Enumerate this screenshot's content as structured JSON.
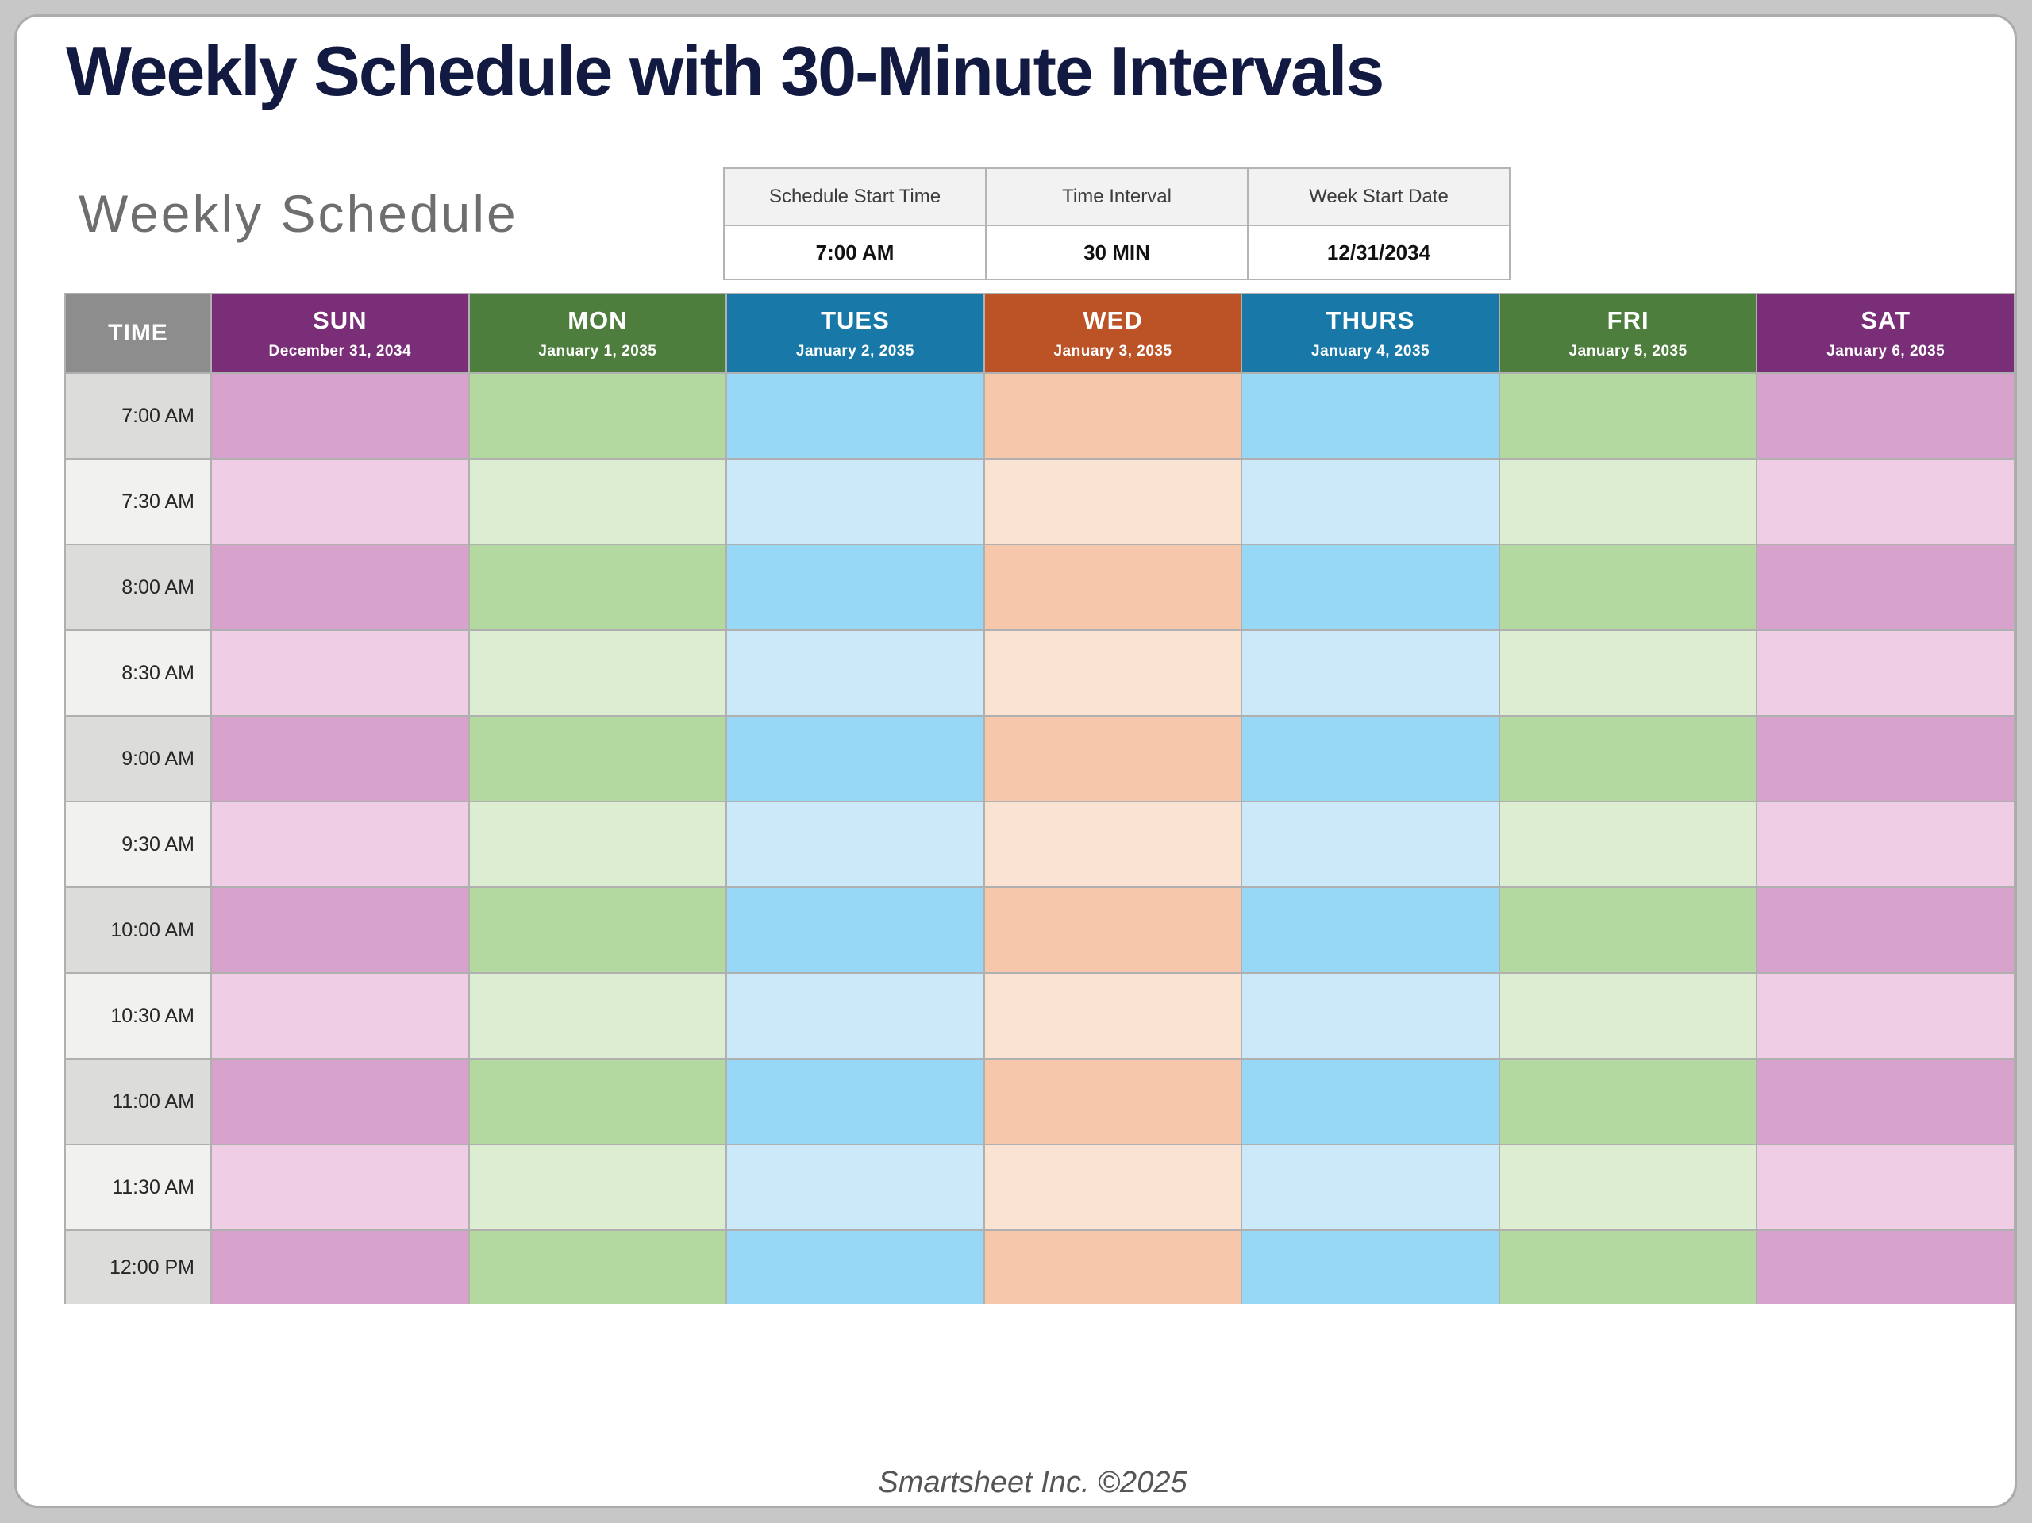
{
  "page": {
    "title": "Weekly Schedule with 30-Minute Intervals",
    "subtitle": "Weekly Schedule",
    "footer": "Smartsheet Inc. ©2025"
  },
  "settings": {
    "columns": [
      {
        "label": "Schedule Start Time",
        "value": "7:00 AM"
      },
      {
        "label": "Time Interval",
        "value": "30 MIN"
      },
      {
        "label": "Week Start Date",
        "value": "12/31/2034"
      }
    ]
  },
  "schedule": {
    "time_header": "TIME",
    "days": [
      {
        "name": "SUN",
        "date": "December 31, 2034",
        "theme": "purple"
      },
      {
        "name": "MON",
        "date": "January 1, 2035",
        "theme": "green"
      },
      {
        "name": "TUES",
        "date": "January 2, 2035",
        "theme": "blue"
      },
      {
        "name": "WED",
        "date": "January 3, 2035",
        "theme": "orange"
      },
      {
        "name": "THURS",
        "date": "January 4, 2035",
        "theme": "blue"
      },
      {
        "name": "FRI",
        "date": "January 5, 2035",
        "theme": "green"
      },
      {
        "name": "SAT",
        "date": "January 6, 2035",
        "theme": "purple"
      }
    ],
    "times": [
      "7:00 AM",
      "7:30 AM",
      "8:00 AM",
      "8:30 AM",
      "9:00 AM",
      "9:30 AM",
      "10:00 AM",
      "10:30 AM",
      "11:00 AM",
      "11:30 AM",
      "12:00 PM"
    ],
    "themes": {
      "purple": {
        "header": "#7B2E78",
        "dark": "#D7A2CC",
        "light": "#EFCDE5"
      },
      "green": {
        "header": "#4E7E3D",
        "dark": "#B3D9A0",
        "light": "#DCEDD1"
      },
      "blue": {
        "header": "#1878A8",
        "dark": "#96D8F5",
        "light": "#CBE9F9"
      },
      "orange": {
        "header": "#BC5326",
        "dark": "#F6C7AA",
        "light": "#FBE3D4"
      },
      "time": {
        "header": "#8D8D8D",
        "dark": "#DCDCDA",
        "light": "#F1F1EF"
      }
    },
    "grid_line_color": "#B0B0B0"
  }
}
